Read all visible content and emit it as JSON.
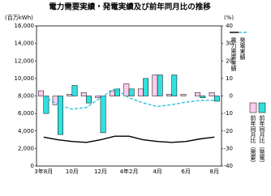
{
  "chart_data": {
    "type": "combo",
    "title": "電力需要実績・発電実績及び前年同月比の推移",
    "y_label": "(百万kWh)",
    "y2_label": "(%)",
    "categories": [
      "3年8月",
      null,
      "10月",
      null,
      "12月",
      null,
      "4年2月",
      null,
      "4月",
      null,
      "6月",
      null,
      "8月"
    ],
    "ylim": [
      0,
      16000
    ],
    "yticks": [
      {
        "value": 0,
        "label": "0"
      },
      {
        "value": 2000,
        "label": "2,000"
      },
      {
        "value": 4000,
        "label": "4,000"
      },
      {
        "value": 6000,
        "label": "6,000"
      },
      {
        "value": 8000,
        "label": "8,000"
      },
      {
        "value": 10000,
        "label": "10,000"
      },
      {
        "value": 12000,
        "label": "12,000"
      },
      {
        "value": 14000,
        "label": "14,000"
      },
      {
        "value": 16000,
        "label": "16,000"
      }
    ],
    "y2lim": [
      -40,
      40
    ],
    "y2ticks": [
      -40,
      -30,
      -20,
      -10,
      0,
      10,
      20,
      30,
      40
    ],
    "series": [
      {
        "name": "電力需要実績",
        "kind": "line",
        "dashed": false,
        "color": "#000000",
        "values": [
          3300,
          3000,
          2800,
          2700,
          3000,
          3400,
          3400,
          3000,
          2800,
          2700,
          2800,
          3100,
          3300
        ]
      },
      {
        "name": "発電実績",
        "kind": "line",
        "dashed": true,
        "color": "#33c0e0",
        "values": [
          8000,
          7000,
          6500,
          6700,
          7800,
          8800,
          7800,
          7200,
          6800,
          7000,
          7300,
          7500,
          7500
        ]
      },
      {
        "name": "前年同月比（需要）",
        "kind": "bar",
        "axis": "y2",
        "color": "#ffccee",
        "values": [
          3,
          -5,
          1,
          2,
          -1,
          3,
          7,
          4,
          12,
          1,
          1,
          2,
          2
        ]
      },
      {
        "name": "前年同月比（発電）",
        "kind": "bar",
        "axis": "y2",
        "color": "#33e0e0",
        "values": [
          -10,
          -22,
          6,
          -4,
          -21,
          4,
          4,
          10,
          12,
          12,
          0,
          -1,
          -3
        ]
      }
    ]
  }
}
